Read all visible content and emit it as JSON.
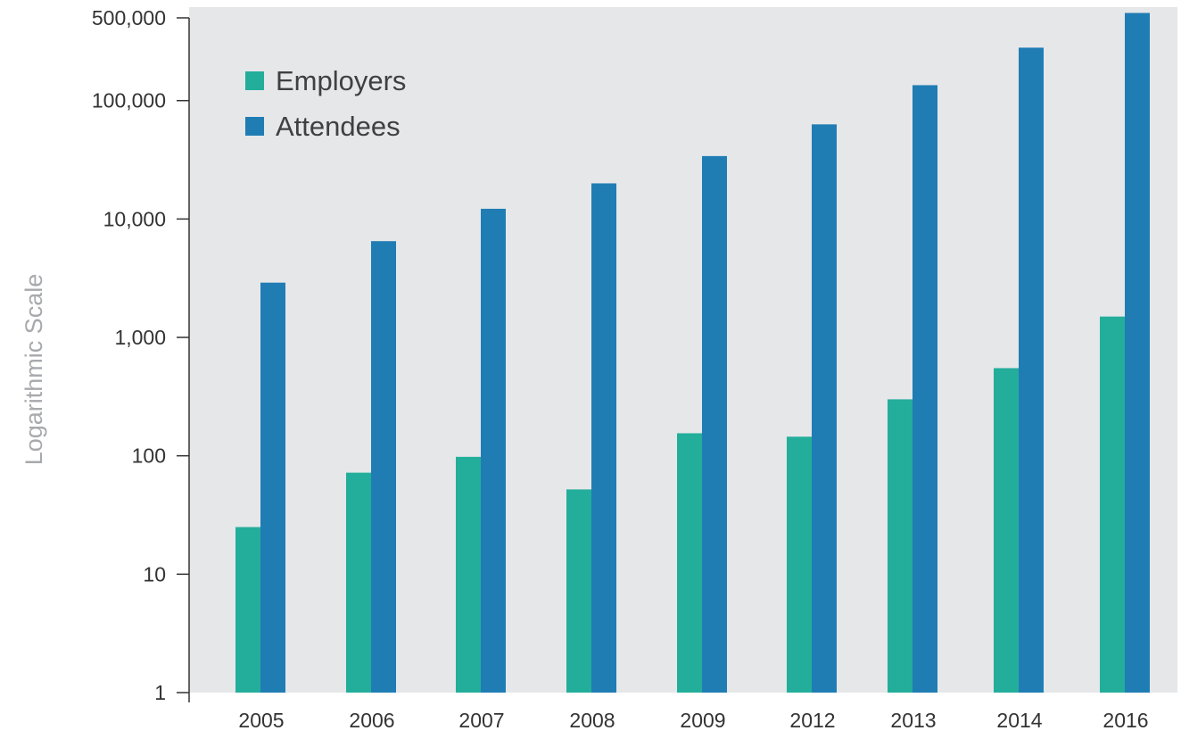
{
  "chart_data": {
    "type": "bar",
    "title": "",
    "xlabel": "",
    "ylabel": "Logarithmic Scale",
    "yscale": "log",
    "ylim": [
      1,
      500000
    ],
    "yticks": [
      1,
      10,
      100,
      1000,
      10000,
      100000,
      500000
    ],
    "ytick_labels": [
      "1",
      "10",
      "100",
      "1,000",
      "10,000",
      "100,000",
      "500,000"
    ],
    "categories": [
      "2005",
      "2006",
      "2007",
      "2008",
      "2009",
      "2012",
      "2013",
      "2014",
      "2016"
    ],
    "series": [
      {
        "name": "Employers",
        "color": "#23ae9b",
        "values": [
          25,
          72,
          98,
          52,
          155,
          145,
          300,
          550,
          1500
        ]
      },
      {
        "name": "Attendees",
        "color": "#1f7db4",
        "values": [
          2900,
          6500,
          12200,
          20000,
          34000,
          63000,
          135000,
          280000,
          550000
        ]
      }
    ],
    "legend": "top-left",
    "plot_background": "#e6e7e9",
    "grid": false
  }
}
